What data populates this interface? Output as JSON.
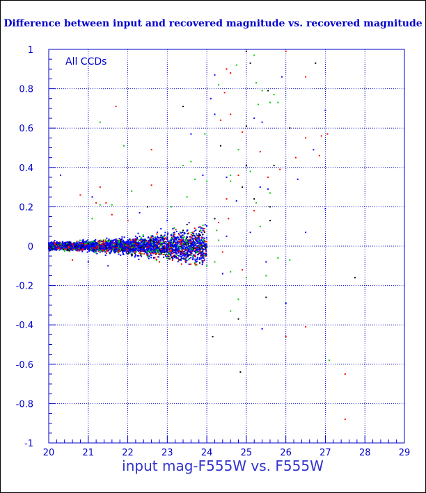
{
  "chart_data": {
    "type": "scatter",
    "title": "Difference between input and recovered magnitude vs. recovered magnitude",
    "xlabel": "input mag-F555W vs. F555W",
    "ylabel": "",
    "annotation": "All CCDs",
    "xlim": [
      20,
      29
    ],
    "ylim": [
      -1,
      1
    ],
    "x_ticks": [
      20,
      21,
      22,
      23,
      24,
      25,
      26,
      27,
      28,
      29
    ],
    "y_ticks": [
      -1,
      -0.8,
      -0.6,
      -0.4,
      -0.2,
      0,
      0.2,
      0.4,
      0.6,
      0.8,
      1
    ],
    "grid": true,
    "colors": {
      "axis": "#0000cc",
      "grid": "#0000cc",
      "points": [
        "#0000ff",
        "#ff0000",
        "#00cc00",
        "#000000"
      ]
    },
    "dense_band": {
      "x_range": [
        20.0,
        24.0
      ],
      "y_center": 0,
      "spread_at_x20": 0.012,
      "spread_at_x24": 0.06
    },
    "points": [
      [
        24.5,
        0.9,
        1
      ],
      [
        24.6,
        0.88,
        1
      ],
      [
        24.75,
        0.92,
        2
      ],
      [
        25.0,
        0.99,
        3
      ],
      [
        25.2,
        0.97,
        2
      ],
      [
        26.0,
        0.99,
        1
      ],
      [
        26.5,
        0.86,
        1
      ],
      [
        26.75,
        0.93,
        3
      ],
      [
        25.1,
        0.93,
        3
      ],
      [
        24.2,
        0.87,
        0
      ],
      [
        24.3,
        0.82,
        2
      ],
      [
        25.25,
        0.83,
        2
      ],
      [
        25.4,
        0.79,
        2
      ],
      [
        25.55,
        0.79,
        3
      ],
      [
        25.7,
        0.77,
        2
      ],
      [
        25.8,
        0.73,
        2
      ],
      [
        25.9,
        0.86,
        0
      ],
      [
        24.45,
        0.78,
        1
      ],
      [
        24.1,
        0.75,
        0
      ],
      [
        25.6,
        0.73,
        2
      ],
      [
        25.3,
        0.72,
        2
      ],
      [
        24.6,
        0.67,
        1
      ],
      [
        24.2,
        0.67,
        0
      ],
      [
        24.35,
        0.64,
        1
      ],
      [
        25.0,
        0.61,
        3
      ],
      [
        24.9,
        0.58,
        1
      ],
      [
        25.2,
        0.65,
        0
      ],
      [
        25.4,
        0.63,
        0
      ],
      [
        26.1,
        0.6,
        3
      ],
      [
        26.5,
        0.55,
        1
      ],
      [
        26.9,
        0.56,
        1
      ],
      [
        27.0,
        0.69,
        0
      ],
      [
        27.05,
        0.57,
        1
      ],
      [
        23.4,
        0.71,
        3
      ],
      [
        21.7,
        0.71,
        1
      ],
      [
        21.3,
        0.63,
        2
      ],
      [
        21.9,
        0.51,
        2
      ],
      [
        22.6,
        0.49,
        1
      ],
      [
        23.6,
        0.57,
        0
      ],
      [
        23.4,
        0.41,
        2
      ],
      [
        23.95,
        0.57,
        2
      ],
      [
        24.35,
        0.51,
        3
      ],
      [
        24.8,
        0.49,
        2
      ],
      [
        25.0,
        0.41,
        3
      ],
      [
        25.35,
        0.48,
        1
      ],
      [
        25.55,
        0.35,
        1
      ],
      [
        25.7,
        0.41,
        3
      ],
      [
        25.85,
        0.39,
        1
      ],
      [
        26.7,
        0.49,
        0
      ],
      [
        27.0,
        0.19,
        0
      ],
      [
        26.85,
        0.46,
        1
      ],
      [
        26.3,
        0.34,
        0
      ],
      [
        26.25,
        0.45,
        1
      ],
      [
        24.8,
        0.36,
        1
      ],
      [
        25.1,
        0.38,
        2
      ],
      [
        24.6,
        0.36,
        2
      ],
      [
        24.6,
        0.33,
        2
      ],
      [
        23.9,
        0.36,
        0
      ],
      [
        24.5,
        0.35,
        0
      ],
      [
        24.0,
        0.33,
        2
      ],
      [
        23.7,
        0.34,
        2
      ],
      [
        24.9,
        0.3,
        3
      ],
      [
        25.35,
        0.3,
        0
      ],
      [
        25.55,
        0.29,
        0
      ],
      [
        25.6,
        0.27,
        2
      ],
      [
        22.6,
        0.31,
        1
      ],
      [
        21.3,
        0.3,
        1
      ],
      [
        20.3,
        0.36,
        0
      ],
      [
        20.8,
        0.26,
        1
      ],
      [
        21.1,
        0.25,
        0
      ],
      [
        21.2,
        0.22,
        1
      ],
      [
        21.3,
        0.21,
        2
      ],
      [
        21.45,
        0.22,
        1
      ],
      [
        21.6,
        0.21,
        2
      ],
      [
        22.5,
        0.2,
        3
      ],
      [
        23.1,
        0.2,
        2
      ],
      [
        23.5,
        0.25,
        2
      ],
      [
        24.5,
        0.24,
        1
      ],
      [
        24.75,
        0.23,
        0
      ],
      [
        25.2,
        0.24,
        3
      ],
      [
        25.6,
        0.2,
        3
      ],
      [
        25.2,
        0.18,
        1
      ],
      [
        25.35,
        0.1,
        2
      ],
      [
        25.6,
        0.13,
        3
      ],
      [
        24.55,
        0.14,
        1
      ],
      [
        24.2,
        0.14,
        3
      ],
      [
        24.3,
        0.12,
        1
      ],
      [
        25.1,
        0.07,
        0
      ],
      [
        26.5,
        0.07,
        0
      ],
      [
        25.5,
        -0.08,
        0
      ],
      [
        24.9,
        -0.12,
        1
      ],
      [
        25.0,
        -0.16,
        2
      ],
      [
        25.5,
        -0.15,
        2
      ],
      [
        24.4,
        -0.14,
        0
      ],
      [
        24.6,
        -0.13,
        2
      ],
      [
        24.8,
        -0.27,
        2
      ],
      [
        24.6,
        -0.33,
        2
      ],
      [
        24.8,
        -0.37,
        3
      ],
      [
        25.4,
        -0.42,
        0
      ],
      [
        25.5,
        -0.26,
        3
      ],
      [
        26.0,
        -0.29,
        0
      ],
      [
        26.0,
        -0.46,
        1
      ],
      [
        26.5,
        -0.41,
        1
      ],
      [
        27.1,
        -0.58,
        2
      ],
      [
        27.5,
        -0.65,
        1
      ],
      [
        27.5,
        -0.88,
        1
      ],
      [
        27.75,
        -0.16,
        3
      ],
      [
        24.15,
        -0.46,
        3
      ],
      [
        24.85,
        -0.64,
        3
      ],
      [
        25.8,
        -0.06,
        2
      ],
      [
        26.1,
        -0.07,
        2
      ],
      [
        21.1,
        0.14,
        2
      ],
      [
        21.6,
        0.16,
        1
      ],
      [
        22.0,
        0.13,
        1
      ],
      [
        22.3,
        0.17,
        0
      ],
      [
        23.0,
        0.13,
        0
      ],
      [
        23.5,
        0.11,
        3
      ],
      [
        23.9,
        0.09,
        0
      ],
      [
        24.2,
        -0.08,
        2
      ],
      [
        24.0,
        -0.1,
        2
      ],
      [
        23.7,
        -0.09,
        1
      ],
      [
        23.3,
        -0.07,
        3
      ],
      [
        22.8,
        -0.08,
        1
      ],
      [
        21.5,
        -0.1,
        0
      ],
      [
        21.0,
        -0.08,
        0
      ],
      [
        20.6,
        -0.07,
        1
      ],
      [
        24.3,
        0.03,
        2
      ],
      [
        24.4,
        -0.03,
        1
      ],
      [
        24.5,
        0.05,
        0
      ],
      [
        24.25,
        0.08,
        2
      ],
      [
        25.25,
        0.22,
        2
      ],
      [
        23.6,
        0.43,
        2
      ],
      [
        22.1,
        0.28,
        2
      ],
      [
        22.2,
        0.05,
        0
      ],
      [
        23.85,
        -0.05,
        3
      ]
    ]
  }
}
